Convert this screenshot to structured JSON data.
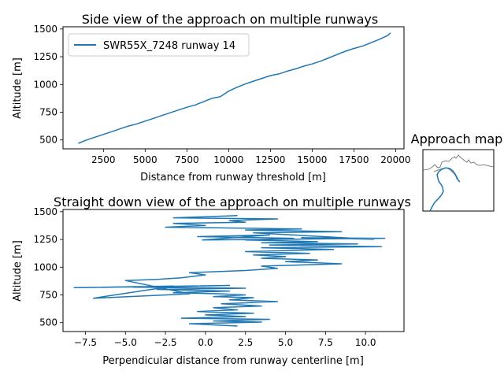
{
  "colors": {
    "series": "#1f77b4",
    "coast": "#808080",
    "axes": "#000000"
  },
  "chart_data": [
    {
      "type": "line",
      "title": "Side view of the approach on multiple runways",
      "xlabel": "Distance from runway threshold [m]",
      "ylabel": "Altitude [m]",
      "xlim": [
        80,
        20500
      ],
      "ylim": [
        420,
        1520
      ],
      "xticks": [
        2500,
        5000,
        7500,
        10000,
        12500,
        15000,
        17500,
        20000
      ],
      "yticks": [
        500,
        750,
        1000,
        1250,
        1500
      ],
      "xtick_labels": [
        "2500",
        "5000",
        "7500",
        "10000",
        "12500",
        "15000",
        "17500",
        "20000"
      ],
      "ytick_labels": [
        "500",
        "750",
        "1000",
        "1250",
        "1500"
      ],
      "legend": {
        "position": "upper-left",
        "entries": [
          "SWR55X_7248 runway 14"
        ]
      },
      "series": [
        {
          "name": "SWR55X_7248 runway 14",
          "x": [
            1000,
            1500,
            2000,
            2500,
            3000,
            3500,
            4000,
            4500,
            5000,
            5500,
            6000,
            6500,
            7000,
            7500,
            8000,
            8500,
            9000,
            9500,
            10000,
            10500,
            11000,
            11500,
            12000,
            12500,
            13000,
            13500,
            14000,
            14500,
            15000,
            15500,
            16000,
            16500,
            17000,
            17500,
            18000,
            18500,
            19000,
            19500,
            19700
          ],
          "y": [
            470,
            500,
            525,
            550,
            575,
            600,
            625,
            645,
            670,
            695,
            720,
            745,
            770,
            795,
            815,
            845,
            875,
            890,
            940,
            975,
            1005,
            1030,
            1055,
            1080,
            1095,
            1120,
            1140,
            1165,
            1185,
            1210,
            1240,
            1270,
            1300,
            1325,
            1345,
            1375,
            1405,
            1440,
            1465
          ]
        }
      ]
    },
    {
      "type": "line",
      "title": "Straight down view of the approach on multiple runways",
      "xlabel": "Perpendicular distance from runway centerline [m]",
      "ylabel": "Altitude [m]",
      "xlim": [
        -8.9,
        12.4
      ],
      "ylim": [
        420,
        1520
      ],
      "xticks": [
        -7.5,
        -5.0,
        -2.5,
        0.0,
        2.5,
        5.0,
        7.5,
        10.0
      ],
      "yticks": [
        500,
        750,
        1000,
        1250,
        1500
      ],
      "xtick_labels": [
        "−7.5",
        "−5.0",
        "−2.5",
        "0.0",
        "2.5",
        "5.0",
        "7.5",
        "10.0"
      ],
      "ytick_labels": [
        "500",
        "750",
        "1000",
        "1250",
        "1500"
      ],
      "series": [
        {
          "x": [
            2.0,
            -1.0,
            3.5,
            0.5,
            4.0,
            -1.5,
            2.5,
            0.0,
            3.0,
            -0.5,
            2.0,
            0.5,
            3.5,
            1.0,
            4.5,
            1.5,
            3.0,
            0.5,
            2.5,
            1.0,
            -2.0,
            1.5,
            -3.0,
            2.5,
            -4.5,
            1.5,
            -8.2,
            -2.0,
            -7.0,
            -1.0,
            -5.0,
            -3.0,
            -1.5,
            0.0,
            -1.0,
            2.5,
            4.5,
            3.5,
            8.5,
            5.0,
            7.0,
            3.5,
            5.0,
            3.0,
            6.5,
            2.5,
            8.0,
            3.5,
            11.0,
            4.0,
            9.5,
            3.5,
            7.0,
            2.5,
            5.5,
            -0.5,
            4.0,
            -0.2,
            11.2,
            6.0,
            10.5,
            3.0,
            8.5,
            2.5,
            6.0,
            -2.5,
            0.0,
            -2.0,
            2.5,
            1.5,
            4.5,
            -2.0,
            1.0,
            2.0
          ],
          "y": [
            470,
            490,
            505,
            515,
            530,
            540,
            555,
            570,
            585,
            600,
            615,
            635,
            650,
            670,
            690,
            705,
            725,
            735,
            750,
            760,
            770,
            785,
            800,
            810,
            820,
            835,
            815,
            830,
            720,
            760,
            880,
            890,
            905,
            930,
            950,
            970,
            990,
            1010,
            1030,
            1050,
            1065,
            1080,
            1095,
            1110,
            1125,
            1140,
            1160,
            1175,
            1185,
            1200,
            1210,
            1220,
            1230,
            1245,
            1260,
            1275,
            1290,
            1245,
            1260,
            1265,
            1250,
            1310,
            1320,
            1335,
            1345,
            1360,
            1375,
            1395,
            1405,
            1420,
            1435,
            1445,
            1460,
            1465
          ]
        }
      ]
    },
    {
      "type": "map",
      "title": "Approach map"
    }
  ]
}
